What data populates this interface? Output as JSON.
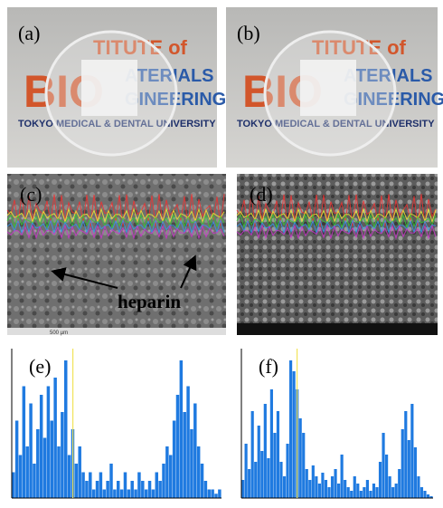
{
  "panels": [
    {
      "label": "(a)",
      "logo": [
        "TITUTE of",
        "BIO",
        "ATERIALS",
        "GINEERING",
        "TOKYO MEDICAL & DENTAL UNIVERSITY"
      ]
    },
    {
      "label": "(b)",
      "logo": [
        "TITUTE of",
        "BIO",
        "ATERIALS",
        "GINEERING",
        "TOKYO MEDICAL & DENTAL UNIVERSITY"
      ]
    },
    {
      "label": "(c)",
      "annotation": "heparin",
      "scale_bar": "500 µm"
    },
    {
      "label": "(d)"
    },
    {
      "label": "(e)",
      "values": [
        0.3,
        0.9,
        0.5,
        1.3,
        0.6,
        1.1,
        0.4,
        0.8,
        1.2,
        0.7,
        1.3,
        0.9,
        1.4,
        0.6,
        1.0,
        1.6,
        0.5,
        0.8,
        0.4,
        0.6,
        0.3,
        0.2,
        0.3,
        0.1,
        0.2,
        0.3,
        0.1,
        0.2,
        0.4,
        0.1,
        0.2,
        0.1,
        0.3,
        0.1,
        0.2,
        0.1,
        0.3,
        0.2,
        0.1,
        0.2,
        0.1,
        0.3,
        0.2,
        0.4,
        0.6,
        0.5,
        0.9,
        1.2,
        1.6,
        1.0,
        1.3,
        0.8,
        1.1,
        0.6,
        0.4,
        0.2,
        0.1,
        0.1,
        0.05,
        0.1
      ]
    },
    {
      "label": "(f)",
      "values": [
        0.5,
        1.5,
        0.8,
        2.4,
        1.0,
        2.0,
        1.3,
        2.6,
        1.1,
        3.0,
        1.8,
        2.4,
        1.0,
        0.6,
        1.5,
        3.8,
        3.5,
        3.0,
        2.2,
        1.8,
        0.8,
        0.5,
        0.9,
        0.6,
        0.4,
        0.7,
        0.5,
        0.3,
        0.6,
        0.8,
        0.4,
        1.2,
        0.5,
        0.3,
        0.2,
        0.6,
        0.4,
        0.2,
        0.3,
        0.5,
        0.2,
        0.4,
        0.3,
        1.0,
        1.8,
        1.2,
        0.6,
        0.3,
        0.4,
        0.8,
        1.9,
        2.4,
        1.6,
        2.6,
        1.4,
        0.6,
        0.3,
        0.2,
        0.1,
        0.05
      ]
    }
  ]
}
